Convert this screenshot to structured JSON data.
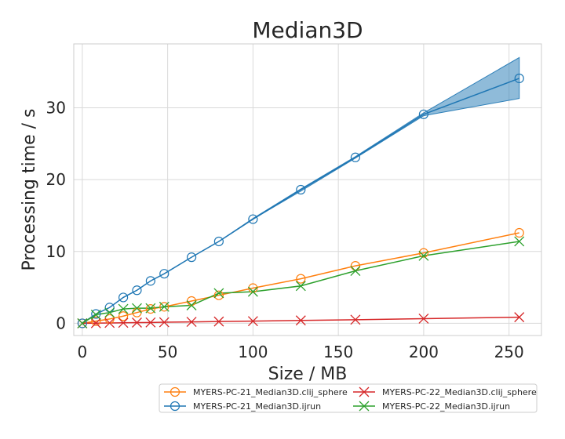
{
  "chart_data": {
    "type": "line",
    "title": "Median3D",
    "xlabel": "Size / MB",
    "ylabel": "Processing time / s",
    "xlim": [
      -5,
      269
    ],
    "ylim": [
      -1.7,
      38.9
    ],
    "xticks": [
      0,
      50,
      100,
      150,
      200,
      250
    ],
    "yticks": [
      0,
      10,
      20,
      30
    ],
    "xtick_labels": [
      "0",
      "50",
      "100",
      "150",
      "200",
      "250"
    ],
    "ytick_labels": [
      "0",
      "10",
      "20",
      "30"
    ],
    "grid": true,
    "legend_position": "bottom-right",
    "x": [
      0,
      8,
      16,
      24,
      32,
      40,
      48,
      64,
      80,
      100,
      128,
      160,
      200,
      256
    ],
    "series": [
      {
        "name": "MYERS-PC-21_Median3D.clij_sphere",
        "color": "#ff7f0e",
        "marker": "circle",
        "values": [
          0.0,
          0.3,
          0.6,
          1.0,
          1.5,
          2.0,
          2.3,
          3.1,
          3.9,
          4.9,
          6.2,
          8.0,
          9.8,
          12.6
        ]
      },
      {
        "name": "MYERS-PC-21_Median3D.ijrun",
        "color": "#1f77b4",
        "marker": "circle",
        "values": [
          0.0,
          1.3,
          2.2,
          3.6,
          4.6,
          5.9,
          6.9,
          9.2,
          11.4,
          14.5,
          18.6,
          23.1,
          29.1,
          34.1
        ],
        "band_lower": [
          0.0,
          1.3,
          2.2,
          3.6,
          4.6,
          5.9,
          6.9,
          9.2,
          11.4,
          14.5,
          18.4,
          23.0,
          28.9,
          31.3
        ],
        "band_upper": [
          0.0,
          1.3,
          2.2,
          3.6,
          4.6,
          5.9,
          6.9,
          9.2,
          11.4,
          14.6,
          18.7,
          23.2,
          29.3,
          37.0
        ]
      },
      {
        "name": "MYERS-PC-22_Median3D.clij_sphere",
        "color": "#d62728",
        "marker": "x",
        "values": [
          0.0,
          0.02,
          0.05,
          0.07,
          0.1,
          0.12,
          0.15,
          0.2,
          0.25,
          0.3,
          0.4,
          0.5,
          0.65,
          0.85
        ]
      },
      {
        "name": "MYERS-PC-22_Median3D.ijrun",
        "color": "#2ca02c",
        "marker": "x",
        "values": [
          0.0,
          1.2,
          1.5,
          2.0,
          2.1,
          2.1,
          2.3,
          2.5,
          4.2,
          4.4,
          5.2,
          7.3,
          9.4,
          11.4
        ]
      }
    ]
  }
}
